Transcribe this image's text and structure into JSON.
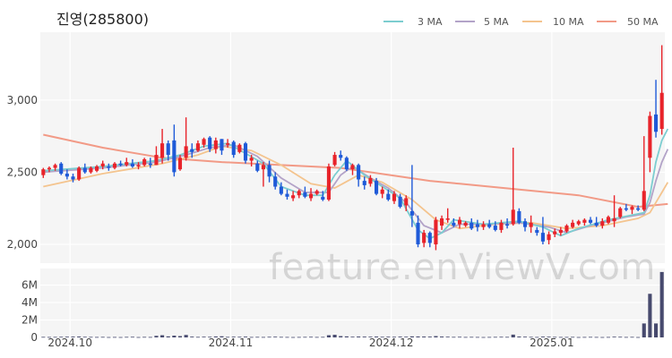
{
  "chart_data": {
    "type": "candlestick",
    "title": "진영(285800)",
    "watermark": "feature.enViewV.com",
    "legend": [
      {
        "name": "3 MA",
        "color": "#7ccdd0"
      },
      {
        "name": "5 MA",
        "color": "#b3a3c8"
      },
      {
        "name": "10 MA",
        "color": "#f4c48e"
      },
      {
        "name": "50 MA",
        "color": "#f29a86"
      }
    ],
    "colors": {
      "up": "#e8232a",
      "down": "#1f5ad8",
      "volume": "#474a6e",
      "plot_bg": "#f5f5f5",
      "grid": "#ffffff"
    },
    "price_axis": {
      "min": 1870,
      "max": 3470,
      "ticks": [
        {
          "value": 2000,
          "label": "2,000"
        },
        {
          "value": 2500,
          "label": "2,500"
        },
        {
          "value": 3000,
          "label": "3,000"
        }
      ]
    },
    "volume_axis": {
      "min": 0,
      "max": 7900000,
      "ticks": [
        {
          "value": 0,
          "label": "0"
        },
        {
          "value": 2000000,
          "label": "2M"
        },
        {
          "value": 4000000,
          "label": "4M"
        },
        {
          "value": 6000000,
          "label": "6M"
        }
      ]
    },
    "x_ticks": [
      {
        "index": 5,
        "label": "2024.10"
      },
      {
        "index": 32,
        "label": "2024.11"
      },
      {
        "index": 59,
        "label": "2024.12"
      },
      {
        "index": 86,
        "label": "2025.01"
      }
    ],
    "candles": [
      [
        2480,
        2530,
        2460,
        2520,
        60000
      ],
      [
        2520,
        2540,
        2500,
        2530,
        50000
      ],
      [
        2530,
        2560,
        2510,
        2550,
        60000
      ],
      [
        2560,
        2570,
        2480,
        2490,
        70000
      ],
      [
        2490,
        2520,
        2450,
        2470,
        80000
      ],
      [
        2470,
        2490,
        2430,
        2450,
        90000
      ],
      [
        2450,
        2540,
        2440,
        2530,
        100000
      ],
      [
        2530,
        2560,
        2490,
        2500,
        70000
      ],
      [
        2500,
        2540,
        2490,
        2530,
        60000
      ],
      [
        2510,
        2550,
        2500,
        2540,
        50000
      ],
      [
        2540,
        2580,
        2520,
        2560,
        60000
      ],
      [
        2540,
        2560,
        2510,
        2530,
        40000
      ],
      [
        2530,
        2570,
        2520,
        2560,
        50000
      ],
      [
        2560,
        2580,
        2540,
        2550,
        40000
      ],
      [
        2550,
        2600,
        2540,
        2570,
        60000
      ],
      [
        2560,
        2590,
        2530,
        2540,
        70000
      ],
      [
        2540,
        2570,
        2520,
        2550,
        40000
      ],
      [
        2550,
        2600,
        2540,
        2590,
        60000
      ],
      [
        2560,
        2600,
        2530,
        2550,
        50000
      ],
      [
        2550,
        2680,
        2550,
        2620,
        180000
      ],
      [
        2600,
        2800,
        2560,
        2700,
        250000
      ],
      [
        2700,
        2720,
        2580,
        2620,
        120000
      ],
      [
        2720,
        2830,
        2470,
        2500,
        200000
      ],
      [
        2520,
        2620,
        2510,
        2600,
        150000
      ],
      [
        2600,
        2880,
        2580,
        2680,
        280000
      ],
      [
        2660,
        2700,
        2600,
        2640,
        90000
      ],
      [
        2650,
        2720,
        2640,
        2700,
        60000
      ],
      [
        2690,
        2740,
        2670,
        2730,
        80000
      ],
      [
        2740,
        2750,
        2640,
        2660,
        70000
      ],
      [
        2660,
        2740,
        2630,
        2720,
        110000
      ],
      [
        2730,
        2730,
        2620,
        2650,
        130000
      ],
      [
        2690,
        2730,
        2670,
        2700,
        60000
      ],
      [
        2710,
        2720,
        2600,
        2620,
        80000
      ],
      [
        2640,
        2700,
        2630,
        2690,
        70000
      ],
      [
        2700,
        2710,
        2560,
        2580,
        90000
      ],
      [
        2580,
        2620,
        2540,
        2600,
        50000
      ],
      [
        2560,
        2580,
        2500,
        2510,
        60000
      ],
      [
        2520,
        2570,
        2400,
        2550,
        50000
      ],
      [
        2550,
        2580,
        2430,
        2470,
        70000
      ],
      [
        2470,
        2500,
        2380,
        2400,
        80000
      ],
      [
        2400,
        2430,
        2340,
        2350,
        60000
      ],
      [
        2350,
        2380,
        2310,
        2330,
        50000
      ],
      [
        2320,
        2370,
        2300,
        2340,
        40000
      ],
      [
        2340,
        2380,
        2320,
        2370,
        50000
      ],
      [
        2360,
        2400,
        2320,
        2330,
        60000
      ],
      [
        2320,
        2390,
        2300,
        2350,
        70000
      ],
      [
        2350,
        2380,
        2340,
        2370,
        50000
      ],
      [
        2330,
        2370,
        2300,
        2310,
        60000
      ],
      [
        2310,
        2560,
        2300,
        2540,
        250000
      ],
      [
        2550,
        2640,
        2540,
        2620,
        300000
      ],
      [
        2620,
        2650,
        2580,
        2600,
        150000
      ],
      [
        2600,
        2610,
        2510,
        2520,
        120000
      ],
      [
        2520,
        2560,
        2480,
        2550,
        80000
      ],
      [
        2550,
        2560,
        2400,
        2450,
        100000
      ],
      [
        2440,
        2470,
        2380,
        2410,
        90000
      ],
      [
        2420,
        2480,
        2400,
        2460,
        80000
      ],
      [
        2440,
        2460,
        2340,
        2350,
        100000
      ],
      [
        2350,
        2400,
        2320,
        2380,
        70000
      ],
      [
        2350,
        2380,
        2300,
        2310,
        80000
      ],
      [
        2300,
        2370,
        2280,
        2350,
        70000
      ],
      [
        2330,
        2350,
        2250,
        2260,
        90000
      ],
      [
        2270,
        2340,
        2230,
        2320,
        80000
      ],
      [
        2230,
        2550,
        2120,
        2200,
        120000
      ],
      [
        2150,
        2200,
        1980,
        2000,
        110000
      ],
      [
        2010,
        2100,
        1980,
        2080,
        100000
      ],
      [
        2080,
        2090,
        1980,
        2010,
        90000
      ],
      [
        2000,
        2190,
        1960,
        2170,
        150000
      ],
      [
        2130,
        2200,
        2100,
        2180,
        100000
      ],
      [
        2170,
        2250,
        2150,
        2180,
        80000
      ],
      [
        2150,
        2180,
        2120,
        2130,
        60000
      ],
      [
        2140,
        2190,
        2110,
        2170,
        70000
      ],
      [
        2130,
        2160,
        2120,
        2150,
        50000
      ],
      [
        2150,
        2180,
        2100,
        2110,
        60000
      ],
      [
        2140,
        2170,
        2090,
        2120,
        50000
      ],
      [
        2120,
        2160,
        2100,
        2140,
        40000
      ],
      [
        2140,
        2170,
        2110,
        2120,
        50000
      ],
      [
        2130,
        2160,
        2090,
        2100,
        60000
      ],
      [
        2100,
        2170,
        2080,
        2150,
        70000
      ],
      [
        2140,
        2180,
        2110,
        2130,
        60000
      ],
      [
        2140,
        2670,
        2130,
        2240,
        320000
      ],
      [
        2230,
        2250,
        2140,
        2150,
        100000
      ],
      [
        2160,
        2180,
        2090,
        2120,
        80000
      ],
      [
        2120,
        2200,
        2080,
        2150,
        60000
      ],
      [
        2100,
        2120,
        2060,
        2080,
        50000
      ],
      [
        2080,
        2190,
        2000,
        2020,
        90000
      ],
      [
        2030,
        2090,
        2000,
        2070,
        80000
      ],
      [
        2070,
        2110,
        2050,
        2090,
        60000
      ],
      [
        2080,
        2120,
        2060,
        2100,
        50000
      ],
      [
        2090,
        2140,
        2080,
        2130,
        50000
      ],
      [
        2120,
        2170,
        2110,
        2150,
        60000
      ],
      [
        2140,
        2170,
        2130,
        2160,
        40000
      ],
      [
        2150,
        2180,
        2130,
        2170,
        50000
      ],
      [
        2170,
        2190,
        2140,
        2150,
        60000
      ],
      [
        2150,
        2190,
        2120,
        2130,
        50000
      ],
      [
        2130,
        2180,
        2110,
        2160,
        40000
      ],
      [
        2150,
        2200,
        2140,
        2190,
        50000
      ],
      [
        2160,
        2340,
        2120,
        2180,
        80000
      ],
      [
        2190,
        2260,
        2180,
        2250,
        70000
      ],
      [
        2250,
        2280,
        2230,
        2240,
        50000
      ],
      [
        2240,
        2270,
        2210,
        2260,
        60000
      ],
      [
        2250,
        2270,
        2230,
        2240,
        40000
      ],
      [
        2240,
        2750,
        2230,
        2370,
        1600000
      ],
      [
        2600,
        2920,
        2500,
        2890,
        5000000
      ],
      [
        2900,
        3140,
        2740,
        2780,
        1600000
      ],
      [
        2800,
        3380,
        2760,
        3050,
        7500000
      ]
    ],
    "ma3": [
      [
        0,
        2510
      ],
      [
        10,
        2540
      ],
      [
        19,
        2580
      ],
      [
        23,
        2620
      ],
      [
        27,
        2680
      ],
      [
        31,
        2700
      ],
      [
        34,
        2630
      ],
      [
        37,
        2560
      ],
      [
        40,
        2400
      ],
      [
        44,
        2340
      ],
      [
        47,
        2340
      ],
      [
        49,
        2480
      ],
      [
        51,
        2580
      ],
      [
        54,
        2480
      ],
      [
        57,
        2400
      ],
      [
        60,
        2320
      ],
      [
        63,
        2100
      ],
      [
        65,
        2040
      ],
      [
        67,
        2080
      ],
      [
        69,
        2170
      ],
      [
        74,
        2140
      ],
      [
        80,
        2160
      ],
      [
        84,
        2120
      ],
      [
        87,
        2060
      ],
      [
        90,
        2110
      ],
      [
        95,
        2170
      ],
      [
        101,
        2220
      ],
      [
        102,
        2340
      ],
      [
        103,
        2570
      ],
      [
        104,
        2720
      ],
      [
        105,
        2800
      ]
    ],
    "ma5": [
      [
        0,
        2500
      ],
      [
        10,
        2530
      ],
      [
        19,
        2570
      ],
      [
        24,
        2620
      ],
      [
        28,
        2670
      ],
      [
        32,
        2690
      ],
      [
        36,
        2610
      ],
      [
        40,
        2460
      ],
      [
        44,
        2360
      ],
      [
        48,
        2360
      ],
      [
        50,
        2480
      ],
      [
        52,
        2540
      ],
      [
        55,
        2460
      ],
      [
        58,
        2390
      ],
      [
        61,
        2290
      ],
      [
        64,
        2130
      ],
      [
        67,
        2080
      ],
      [
        70,
        2140
      ],
      [
        75,
        2140
      ],
      [
        80,
        2150
      ],
      [
        85,
        2120
      ],
      [
        88,
        2080
      ],
      [
        92,
        2130
      ],
      [
        98,
        2190
      ],
      [
        101,
        2210
      ],
      [
        102,
        2290
      ],
      [
        103,
        2440
      ],
      [
        104,
        2570
      ],
      [
        105,
        2660
      ]
    ],
    "ma10": [
      [
        0,
        2400
      ],
      [
        10,
        2490
      ],
      [
        20,
        2560
      ],
      [
        26,
        2620
      ],
      [
        30,
        2680
      ],
      [
        35,
        2650
      ],
      [
        40,
        2550
      ],
      [
        45,
        2420
      ],
      [
        49,
        2390
      ],
      [
        53,
        2480
      ],
      [
        57,
        2430
      ],
      [
        62,
        2310
      ],
      [
        66,
        2170
      ],
      [
        70,
        2110
      ],
      [
        76,
        2140
      ],
      [
        82,
        2150
      ],
      [
        88,
        2110
      ],
      [
        94,
        2130
      ],
      [
        100,
        2180
      ],
      [
        102,
        2220
      ],
      [
        103,
        2290
      ],
      [
        104,
        2360
      ],
      [
        105,
        2430
      ]
    ],
    "ma50": [
      [
        0,
        2760
      ],
      [
        10,
        2670
      ],
      [
        20,
        2600
      ],
      [
        30,
        2570
      ],
      [
        40,
        2550
      ],
      [
        50,
        2530
      ],
      [
        60,
        2470
      ],
      [
        65,
        2440
      ],
      [
        70,
        2420
      ],
      [
        80,
        2380
      ],
      [
        90,
        2340
      ],
      [
        100,
        2260
      ],
      [
        105,
        2280
      ]
    ]
  }
}
